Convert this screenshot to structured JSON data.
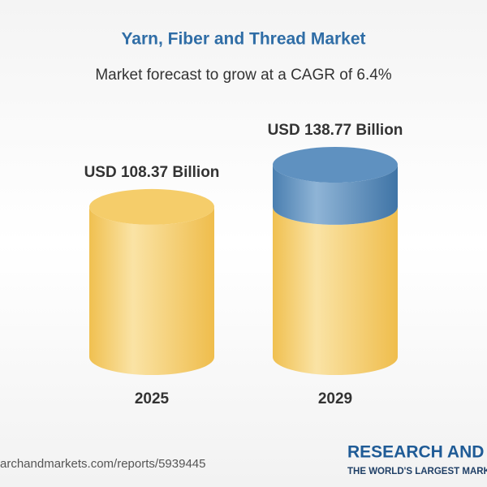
{
  "chart_data": {
    "type": "bar",
    "title": "Yarn, Fiber and Thread Market",
    "subtitle": "Market forecast to grow at a CAGR of 6.4%",
    "categories": [
      "2025",
      "2029"
    ],
    "values": [
      108.37,
      138.77
    ],
    "value_labels": [
      "USD 108.37 Billion",
      "USD 138.77 Billion"
    ],
    "color": "#f3c65c",
    "growth_color": "#4b81b3"
  },
  "footer": {
    "source": "archandmarkets.com/reports/5939445",
    "brand": "RESEARCH AND",
    "tagline": "THE WORLD'S LARGEST MARK"
  }
}
